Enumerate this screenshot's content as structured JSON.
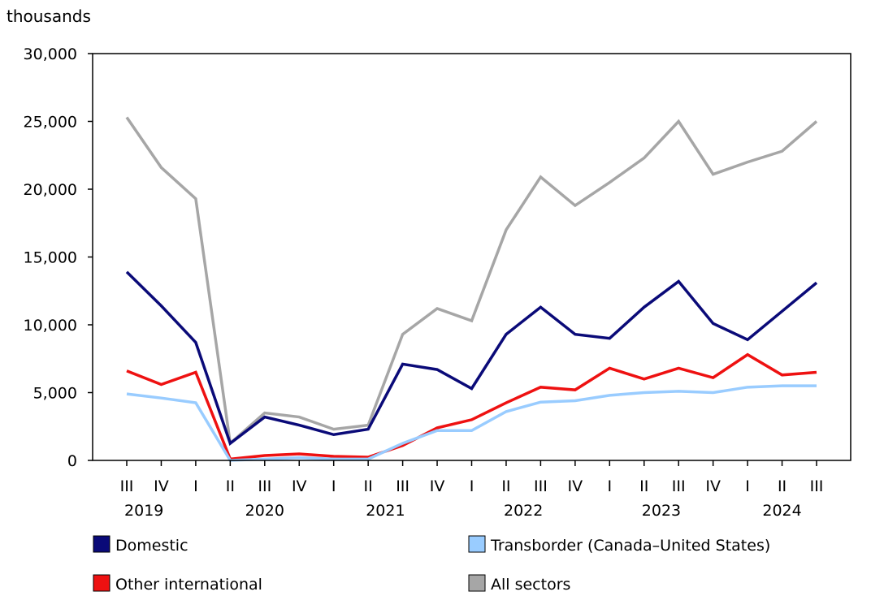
{
  "chart_data": {
    "type": "line",
    "ylabel": "thousands",
    "ylim": [
      0,
      30000
    ],
    "yticks": [
      "0",
      "5,000",
      "10,000",
      "15,000",
      "20,000",
      "25,000",
      "30,000"
    ],
    "ytick_values": [
      0,
      5000,
      10000,
      15000,
      20000,
      25000,
      30000
    ],
    "quarters": [
      "III",
      "IV",
      "I",
      "II",
      "III",
      "IV",
      "I",
      "II",
      "III",
      "IV",
      "I",
      "II",
      "III",
      "IV",
      "I",
      "II",
      "III",
      "IV",
      "I",
      "II",
      "III"
    ],
    "years": [
      {
        "label": "2019",
        "from": 0,
        "to": 1
      },
      {
        "label": "2020",
        "from": 3,
        "to": 5
      },
      {
        "label": "2021",
        "from": 6,
        "to": 9
      },
      {
        "label": "2022",
        "from": 10,
        "to": 13
      },
      {
        "label": "2023",
        "from": 14,
        "to": 17
      },
      {
        "label": "2024",
        "from": 18,
        "to": 20
      }
    ],
    "grid": false,
    "legend_position": "bottom",
    "series": [
      {
        "name": "Domestic",
        "color": "#0a0a78",
        "values": [
          13900,
          11400,
          8700,
          1260,
          3200,
          2600,
          1900,
          2300,
          7100,
          6700,
          5300,
          9300,
          11300,
          9300,
          9000,
          11300,
          13200,
          10100,
          8900,
          11000,
          13100
        ]
      },
      {
        "name": "Transborder (Canada–United States)",
        "color": "#99ccff",
        "values": [
          4900,
          4600,
          4250,
          0,
          100,
          200,
          100,
          100,
          1260,
          2200,
          2200,
          3600,
          4300,
          4400,
          4800,
          5000,
          5100,
          5000,
          5400,
          5500,
          5500
        ]
      },
      {
        "name": "Other international",
        "color": "#ee1111",
        "values": [
          6600,
          5600,
          6500,
          100,
          360,
          480,
          300,
          240,
          1100,
          2400,
          3000,
          4250,
          5400,
          5200,
          6800,
          6000,
          6800,
          6100,
          7800,
          6300,
          6500
        ]
      },
      {
        "name": "All sectors",
        "color": "#a6a6a6",
        "values": [
          25300,
          21600,
          19300,
          1260,
          3500,
          3200,
          2300,
          2600,
          9300,
          11200,
          10300,
          17000,
          20900,
          18800,
          20500,
          22300,
          25000,
          21100,
          22000,
          22800,
          25000
        ]
      }
    ]
  }
}
